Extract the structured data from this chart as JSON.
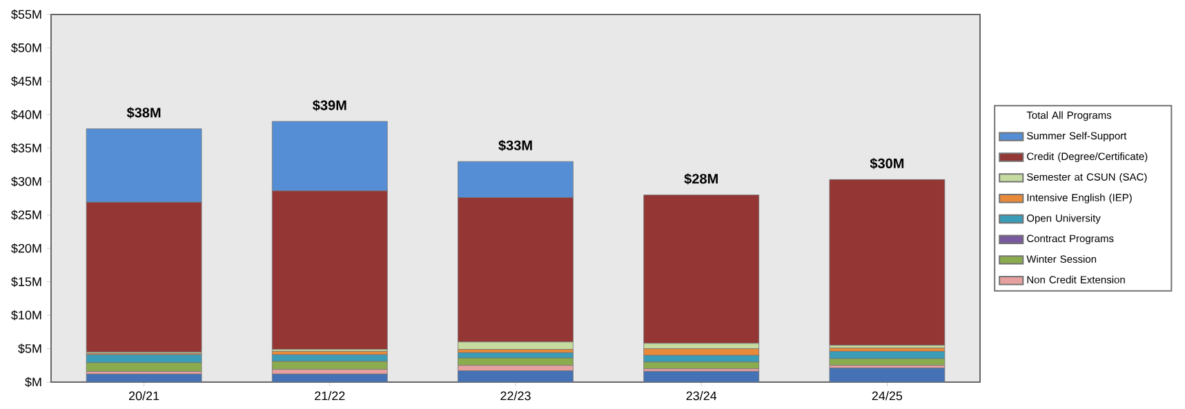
{
  "chart_data": {
    "type": "bar",
    "stacked": true,
    "legend": "right",
    "legend_title": "Total All Programs",
    "categories": [
      "20/21",
      "21/22",
      "22/23",
      "23/24",
      "24/25"
    ],
    "series": [
      {
        "color": "#4472b4",
        "values": [
          1.2,
          1.2,
          1.7,
          1.6,
          2.1
        ]
      },
      {
        "name": "Non Credit Extension",
        "color": "#e6a0a0",
        "values": [
          0.4,
          0.7,
          0.8,
          0.4,
          0.4
        ]
      },
      {
        "name": "Winter Session",
        "color": "#8aac4f",
        "values": [
          1.3,
          1.2,
          1.1,
          1.0,
          1.0
        ]
      },
      {
        "name": "Contract Programs",
        "color": "#7a5a9e",
        "values": [
          0,
          0,
          null,
          0,
          0
        ]
      },
      {
        "name": "Open University",
        "color": "#3b9cb8",
        "values": [
          1.2,
          1.0,
          0.8,
          1.0,
          1.1
        ]
      },
      {
        "name": "Intensive English (IEP)",
        "color": "#e88a3a",
        "values": [
          0.2,
          0.5,
          0.5,
          1.0,
          0.5
        ]
      },
      {
        "name": "Semester at CSUN (SAC)",
        "color": "#c5dba0",
        "values": [
          0.2,
          0.3,
          1.1,
          0.8,
          0.4
        ]
      },
      {
        "name": "Credit (Degree/Certificate)",
        "color": "#943634",
        "values": [
          22.4,
          23.7,
          21.6,
          22.2,
          24.8
        ]
      },
      {
        "name": "Summer Self-Support",
        "color": "#558ed5",
        "values": [
          11.0,
          10.4,
          5.4,
          0,
          0
        ]
      }
    ],
    "totals": [
      "$38M",
      "$39M",
      "$33M",
      "$28M",
      "$30M"
    ],
    "ylim": [
      0,
      55
    ],
    "yticks": [
      {
        "value": 0,
        "label": "$M"
      },
      {
        "value": 5,
        "label": "$5M"
      },
      {
        "value": 10,
        "label": "$10M"
      },
      {
        "value": 15,
        "label": "$15M"
      },
      {
        "value": 20,
        "label": "$20M"
      },
      {
        "value": 25,
        "label": "$25M"
      },
      {
        "value": 30,
        "label": "$30M"
      },
      {
        "value": 35,
        "label": "$35M"
      },
      {
        "value": 40,
        "label": "$40M"
      },
      {
        "value": 45,
        "label": "$45M"
      },
      {
        "value": 50,
        "label": "$50M"
      },
      {
        "value": 55,
        "label": "$55M"
      }
    ],
    "grid": false
  }
}
